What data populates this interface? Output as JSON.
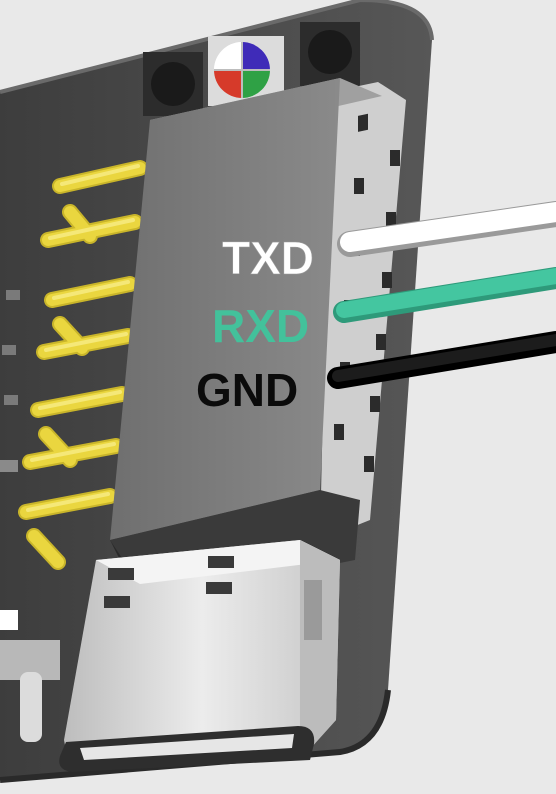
{
  "labels": {
    "txd": "TXD",
    "rxd": "RXD",
    "gnd": "GND"
  },
  "colors": {
    "background": "#e9e9e9",
    "pcb": "#4a4a4a",
    "header_block": "#7d7d7d",
    "pin_gold": "#e8d33c",
    "wire_txd": "#ffffff",
    "wire_rxd": "#3fbf9a",
    "wire_gnd": "#0b0b0b",
    "usb_metal": "#d9d9d9"
  },
  "icons": {
    "rgb_led": "rgb-led-icon",
    "usb_c": "usb-c-port-icon"
  }
}
